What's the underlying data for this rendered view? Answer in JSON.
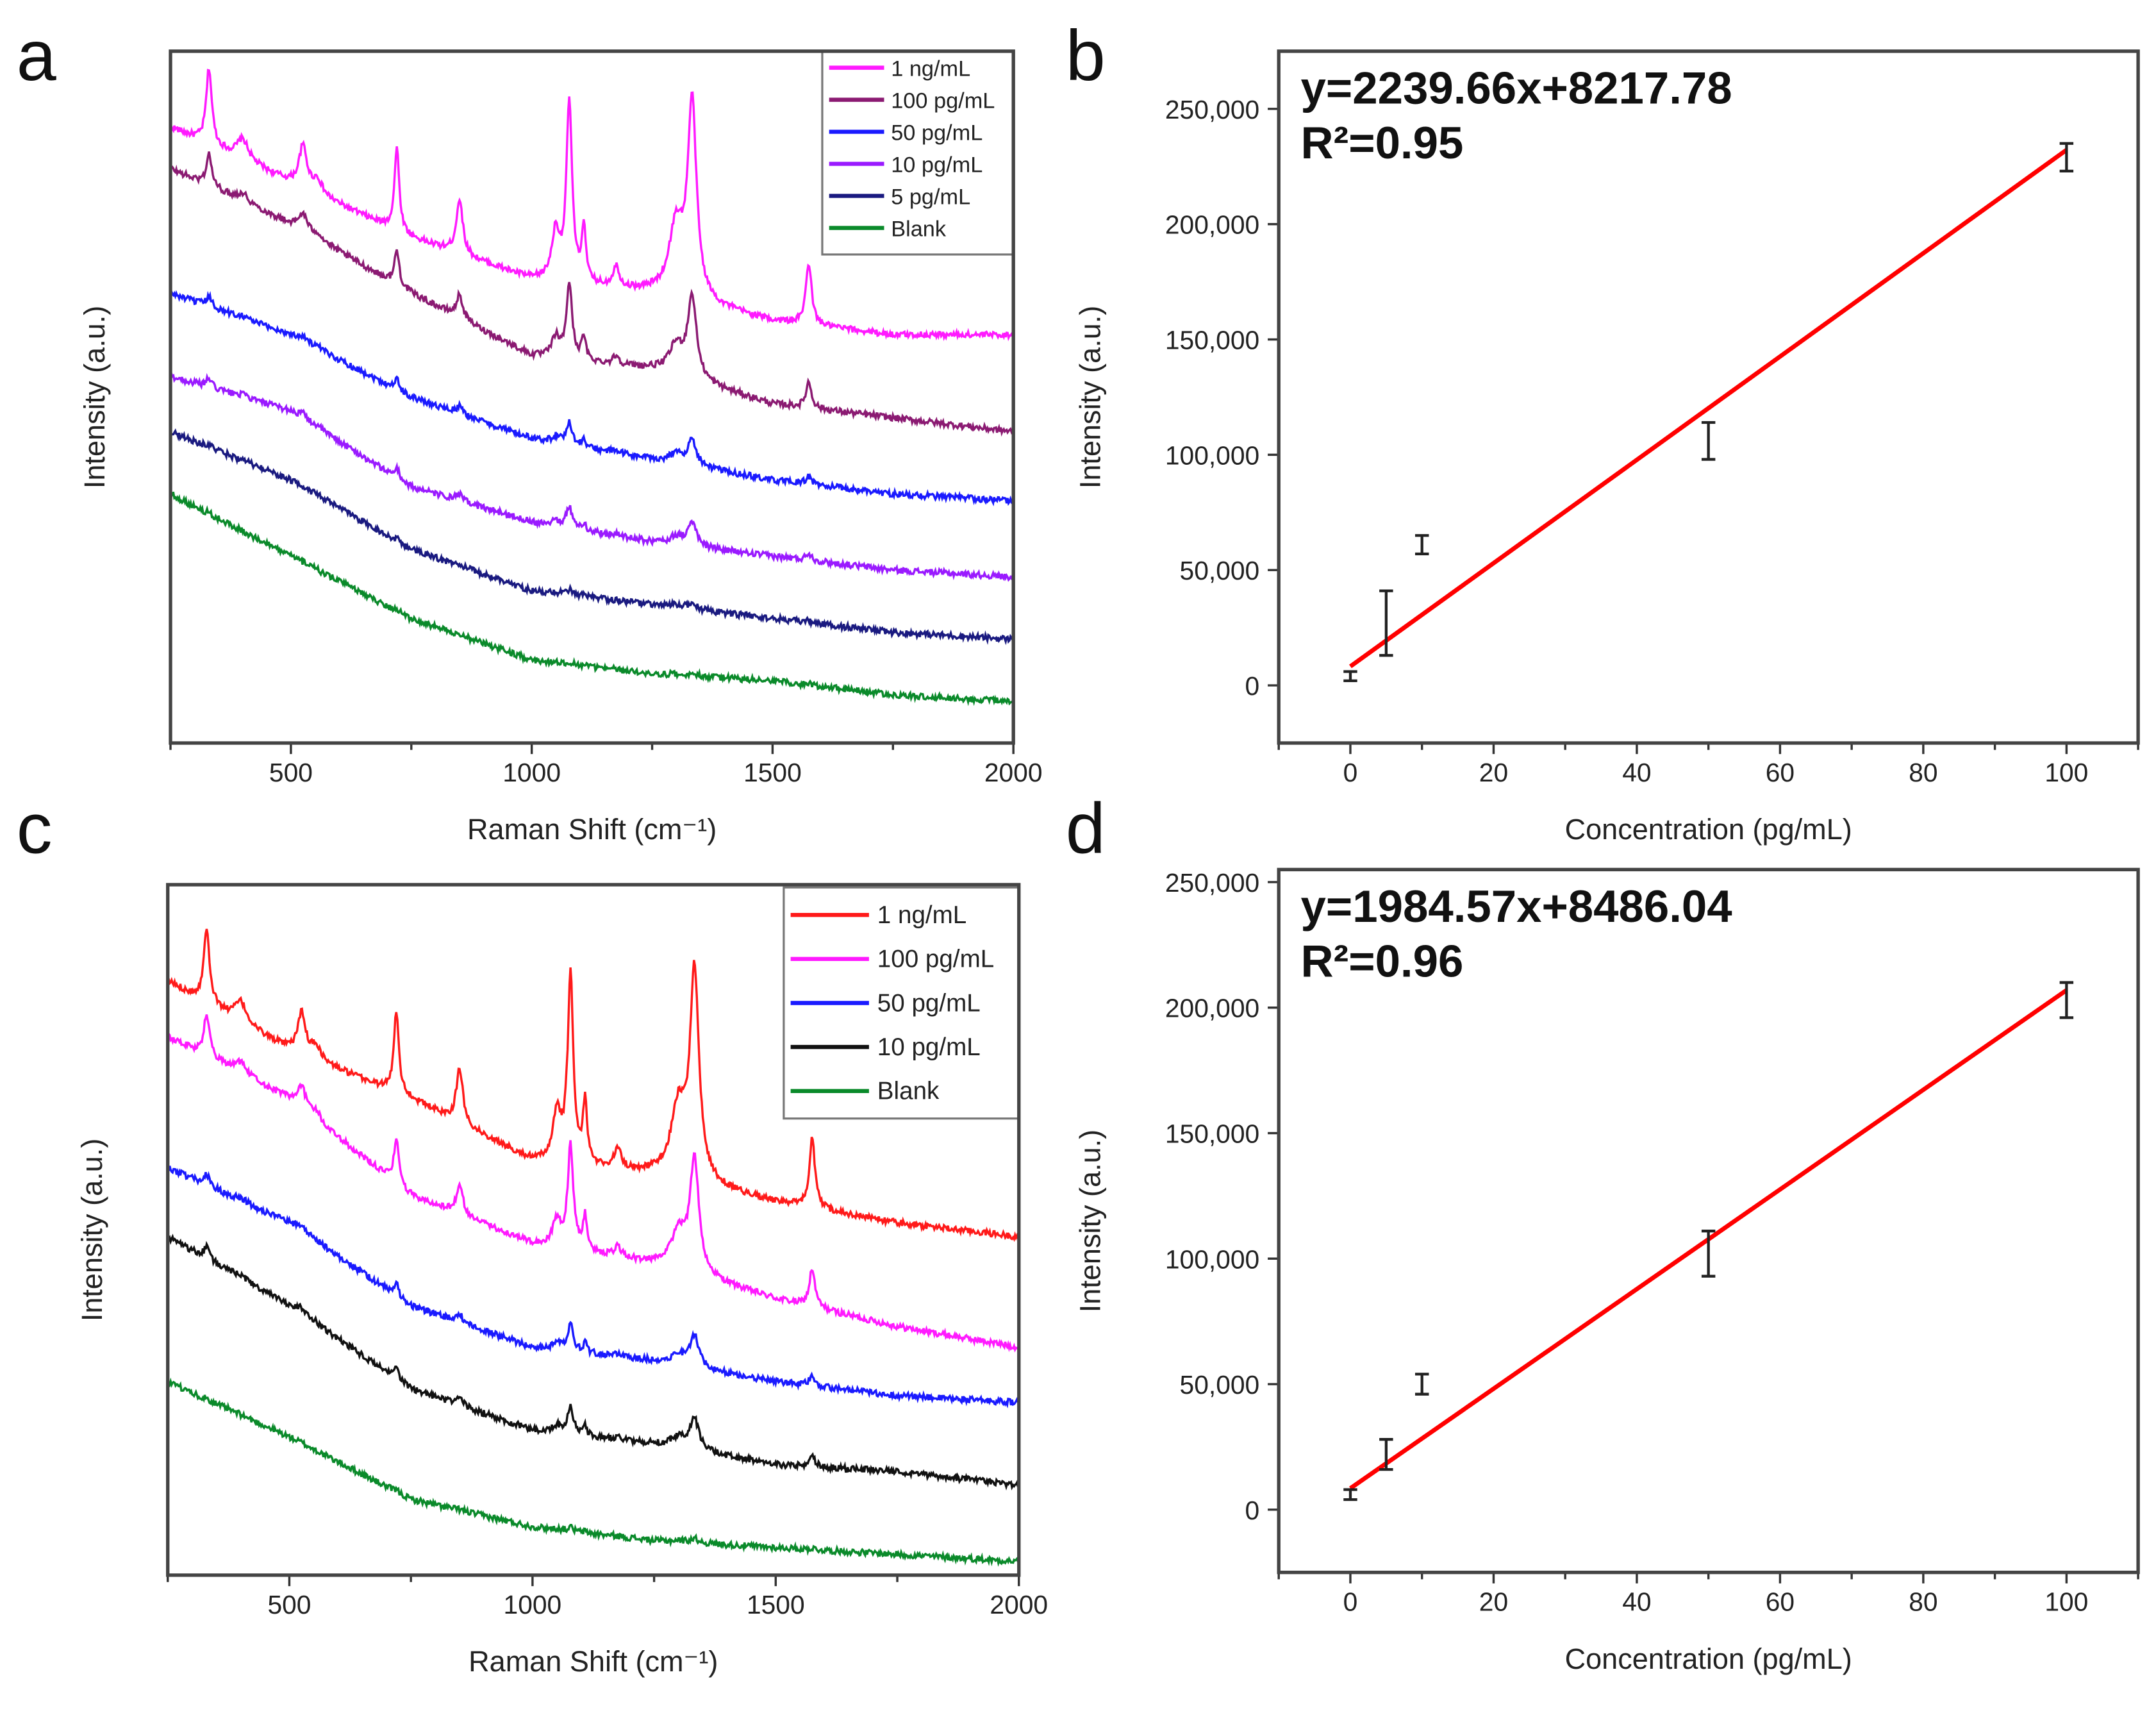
{
  "chart_data": [
    {
      "type": "line",
      "panel_label": "a",
      "xlabel": "Raman Shift (cm⁻¹)",
      "ylabel": "Intensity (a.u.)",
      "xlim": [
        250,
        2000
      ],
      "ylim": [
        0,
        100
      ],
      "xticks": [
        500,
        1000,
        1500,
        2000
      ],
      "xtick_labels": [
        "500",
        "1000",
        "1500",
        "2000"
      ],
      "yticks_shown": false,
      "legend_position": "top-right",
      "baseline_x": [
        250,
        500,
        750,
        1000,
        1250,
        1500,
        1750,
        2000
      ],
      "peaks": [
        {
          "center": 330,
          "amp": 11,
          "width": 7
        },
        {
          "center": 400,
          "amp": 3,
          "width": 15
        },
        {
          "center": 525,
          "amp": 6,
          "width": 10
        },
        {
          "center": 555,
          "amp": 2,
          "width": 12
        },
        {
          "center": 720,
          "amp": 12,
          "width": 6
        },
        {
          "center": 850,
          "amp": 8,
          "width": 8
        },
        {
          "center": 1050,
          "amp": 7,
          "width": 10
        },
        {
          "center": 1078,
          "amp": 26,
          "width": 7
        },
        {
          "center": 1108,
          "amp": 8,
          "width": 5
        },
        {
          "center": 1175,
          "amp": 3,
          "width": 8
        },
        {
          "center": 1300,
          "amp": 10,
          "width": 18
        },
        {
          "center": 1333,
          "amp": 28,
          "width": 11
        },
        {
          "center": 1575,
          "amp": 9,
          "width": 7
        }
      ],
      "series": [
        {
          "name": "1 ng/mL",
          "color": "#ff1aff",
          "peak_scale": 1.0,
          "baseline_y": [
            89,
            81,
            73,
            67,
            65,
            61,
            59,
            59
          ]
        },
        {
          "name": "100 pg/mL",
          "color": "#8b1a72",
          "peak_scale": 0.42,
          "baseline_y": [
            83,
            75,
            65,
            56,
            54,
            49,
            47,
            45
          ]
        },
        {
          "name": "50 pg/mL",
          "color": "#1a1aff",
          "peak_scale": 0.13,
          "baseline_y": [
            65,
            59,
            50,
            44,
            41,
            38,
            36,
            35
          ]
        },
        {
          "name": "10 pg/mL",
          "color": "#9a1aff",
          "peak_scale": 0.12,
          "baseline_y": [
            53,
            48,
            37,
            32,
            29,
            27,
            25,
            24
          ]
        },
        {
          "name": "5 pg/mL",
          "color": "#1a1a80",
          "peak_scale": 0.03,
          "baseline_y": [
            45,
            38,
            28,
            22,
            20,
            18,
            16,
            15
          ]
        },
        {
          "name": "Blank",
          "color": "#0a8a2a",
          "peak_scale": 0.015,
          "baseline_y": [
            36,
            27,
            18,
            12,
            10,
            9,
            7,
            6
          ]
        }
      ]
    },
    {
      "type": "scatter",
      "panel_label": "b",
      "xlabel": "Concentration (pg/mL)",
      "ylabel": "Intensity (a.u.)",
      "xlim": [
        -10,
        110
      ],
      "ylim": [
        -25000,
        275000
      ],
      "xticks": [
        0,
        20,
        40,
        60,
        80,
        100
      ],
      "xtick_labels": [
        "0",
        "20",
        "40",
        "60",
        "80",
        "100"
      ],
      "yticks": [
        0,
        50000,
        100000,
        150000,
        200000,
        250000
      ],
      "ytick_labels": [
        "0",
        "50,000",
        "100,000",
        "150,000",
        "200,000",
        "250,000"
      ],
      "x": [
        0,
        5,
        10,
        50,
        100
      ],
      "y": [
        4000,
        27000,
        61000,
        106000,
        229000
      ],
      "yerr": [
        2000,
        14000,
        4000,
        8000,
        6000
      ],
      "fit": {
        "slope": 2239.66,
        "intercept": 8217.78,
        "r2": 0.95,
        "color": "#ff0000"
      },
      "equation_label": "y=2239.66x+8217.78",
      "r2_label": "R²=0.95"
    },
    {
      "type": "line",
      "panel_label": "c",
      "xlabel": "Raman Shift (cm⁻¹)",
      "ylabel": "Intensity (a.u.)",
      "xlim": [
        250,
        2000
      ],
      "ylim": [
        0,
        100
      ],
      "xticks": [
        500,
        1000,
        1500,
        2000
      ],
      "xtick_labels": [
        "500",
        "1000",
        "1500",
        "2000"
      ],
      "yticks_shown": false,
      "legend_position": "top-right",
      "baseline_x": [
        250,
        500,
        750,
        1000,
        1250,
        1500,
        1750,
        2000
      ],
      "peaks": [
        {
          "center": 330,
          "amp": 11,
          "width": 7
        },
        {
          "center": 400,
          "amp": 3,
          "width": 15
        },
        {
          "center": 525,
          "amp": 6,
          "width": 10
        },
        {
          "center": 555,
          "amp": 2,
          "width": 12
        },
        {
          "center": 720,
          "amp": 12,
          "width": 6
        },
        {
          "center": 850,
          "amp": 8,
          "width": 8
        },
        {
          "center": 1050,
          "amp": 7,
          "width": 10
        },
        {
          "center": 1078,
          "amp": 27,
          "width": 7
        },
        {
          "center": 1108,
          "amp": 9,
          "width": 5
        },
        {
          "center": 1175,
          "amp": 3,
          "width": 8
        },
        {
          "center": 1300,
          "amp": 10,
          "width": 18
        },
        {
          "center": 1333,
          "amp": 30,
          "width": 11
        },
        {
          "center": 1575,
          "amp": 10,
          "width": 7
        }
      ],
      "series": [
        {
          "name": "1 ng/mL",
          "color": "#ff1a1a",
          "peak_scale": 1.0,
          "baseline_y": [
            86,
            76,
            69,
            60,
            58,
            54,
            51,
            49
          ]
        },
        {
          "name": "100 pg/mL",
          "color": "#ff1aff",
          "peak_scale": 0.55,
          "baseline_y": [
            78,
            69,
            55,
            48,
            45,
            40,
            36,
            33
          ]
        },
        {
          "name": "50 pg/mL",
          "color": "#1a1aff",
          "peak_scale": 0.15,
          "baseline_y": [
            59,
            51,
            39,
            33,
            31,
            28,
            26,
            25
          ]
        },
        {
          "name": "10 pg/mL",
          "color": "#111111",
          "peak_scale": 0.15,
          "baseline_y": [
            49,
            39,
            27,
            21,
            19,
            16,
            15,
            13
          ]
        },
        {
          "name": "Blank",
          "color": "#0a8a2a",
          "peak_scale": 0.02,
          "baseline_y": [
            28,
            20,
            11,
            7,
            5,
            4,
            3,
            2
          ]
        }
      ]
    },
    {
      "type": "scatter",
      "panel_label": "d",
      "xlabel": "Concentration (pg/mL)",
      "ylabel": "Intensity (a.u.)",
      "xlim": [
        -10,
        110
      ],
      "ylim": [
        -25000,
        255000
      ],
      "xticks": [
        0,
        20,
        40,
        60,
        80,
        100
      ],
      "xtick_labels": [
        "0",
        "20",
        "40",
        "60",
        "80",
        "100"
      ],
      "yticks": [
        0,
        50000,
        100000,
        150000,
        200000,
        250000
      ],
      "ytick_labels": [
        "0",
        "50,000",
        "100,000",
        "150,000",
        "200,000",
        "250,000"
      ],
      "x": [
        0,
        5,
        10,
        50,
        100
      ],
      "y": [
        6000,
        22000,
        50000,
        102000,
        203000
      ],
      "yerr": [
        2000,
        6000,
        4000,
        9000,
        7000
      ],
      "fit": {
        "slope": 1984.57,
        "intercept": 8486.04,
        "r2": 0.96,
        "color": "#ff0000"
      },
      "equation_label": "y=1984.57x+8486.04",
      "r2_label": "R²=0.96"
    }
  ]
}
